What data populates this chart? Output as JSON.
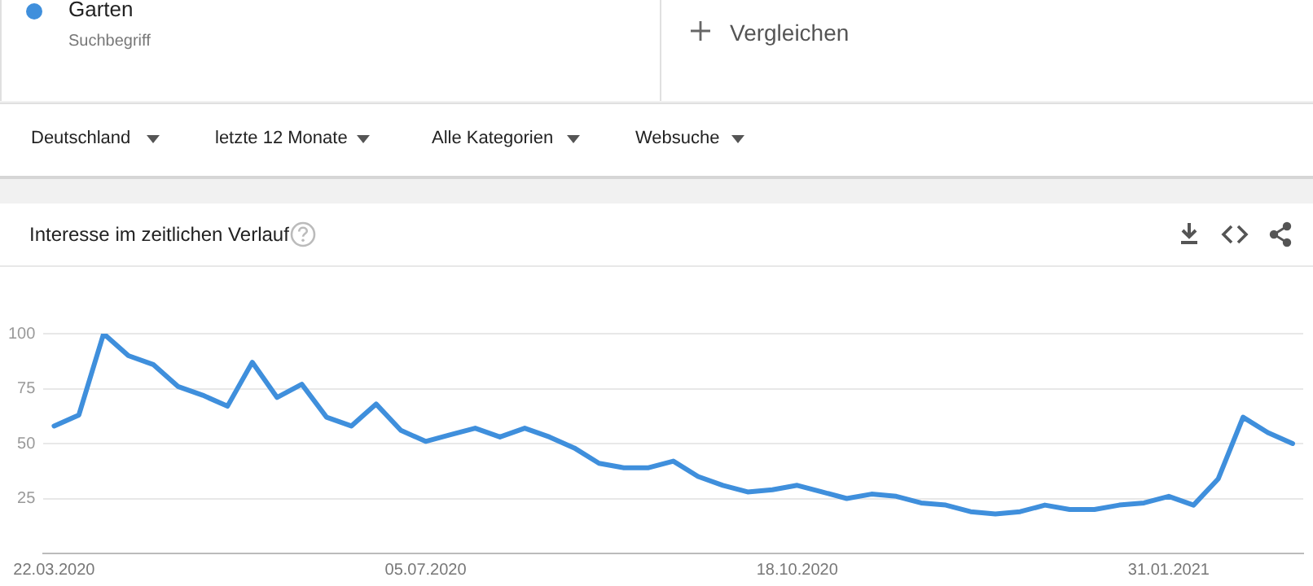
{
  "chart_data": {
    "type": "line",
    "title": "Interesse im zeitlichen Verlauf",
    "x": [
      "2020-03-22",
      "2020-03-29",
      "2020-04-05",
      "2020-04-12",
      "2020-04-19",
      "2020-04-26",
      "2020-05-03",
      "2020-05-10",
      "2020-05-17",
      "2020-05-24",
      "2020-05-31",
      "2020-06-07",
      "2020-06-14",
      "2020-06-21",
      "2020-06-28",
      "2020-07-05",
      "2020-07-12",
      "2020-07-19",
      "2020-07-26",
      "2020-08-02",
      "2020-08-09",
      "2020-08-16",
      "2020-08-23",
      "2020-08-30",
      "2020-09-06",
      "2020-09-13",
      "2020-09-20",
      "2020-09-27",
      "2020-10-04",
      "2020-10-11",
      "2020-10-18",
      "2020-10-25",
      "2020-11-01",
      "2020-11-08",
      "2020-11-15",
      "2020-11-22",
      "2020-11-29",
      "2020-12-06",
      "2020-12-13",
      "2020-12-20",
      "2020-12-27",
      "2021-01-03",
      "2021-01-10",
      "2021-01-17",
      "2021-01-24",
      "2021-01-31",
      "2021-02-07",
      "2021-02-14",
      "2021-02-21",
      "2021-02-28",
      "2021-03-07"
    ],
    "series": [
      {
        "name": "Garten",
        "color": "#3f8fdc",
        "values": [
          58,
          63,
          100,
          90,
          86,
          76,
          72,
          67,
          87,
          71,
          77,
          62,
          58,
          68,
          56,
          51,
          54,
          57,
          53,
          57,
          53,
          48,
          41,
          39,
          39,
          42,
          35,
          31,
          28,
          29,
          31,
          28,
          25,
          27,
          26,
          23,
          22,
          19,
          18,
          19,
          22,
          20,
          20,
          22,
          23,
          26,
          22,
          34,
          62,
          55,
          50
        ]
      }
    ],
    "xlim": [
      "2020-03-19",
      "2021-03-10"
    ],
    "xticks": [
      {
        "value": "2020-03-22",
        "label": "22.03.2020"
      },
      {
        "value": "2020-07-05",
        "label": "05.07.2020"
      },
      {
        "value": "2020-10-18",
        "label": "18.10.2020"
      },
      {
        "value": "2021-01-31",
        "label": "31.01.2021"
      }
    ],
    "ylim": [
      0,
      100
    ],
    "yticks": [
      25,
      50,
      75,
      100
    ],
    "grid": "y",
    "legend": "top left",
    "marker": "none",
    "line_style": "solid",
    "annotations": [
      "Suchbegriff",
      "Vergleichen",
      "Deutschland",
      "letzte 12 Monate",
      "Alle Kategorien",
      "Websuche"
    ]
  }
}
